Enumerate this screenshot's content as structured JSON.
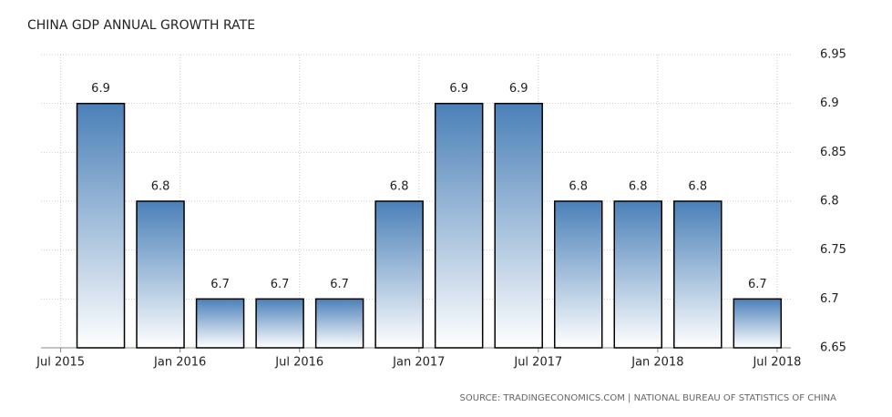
{
  "chart_data": {
    "type": "bar",
    "title": "CHINA GDP ANNUAL GROWTH RATE",
    "source": "SOURCE: TRADINGECONOMICS.COM | NATIONAL BUREAU OF STATISTICS OF CHINA",
    "categories": [
      null,
      null,
      null,
      null,
      null,
      null,
      null,
      null,
      null,
      null,
      null,
      null
    ],
    "values": [
      6.9,
      6.8,
      6.7,
      6.7,
      6.7,
      6.8,
      6.9,
      6.9,
      6.8,
      6.8,
      6.8,
      6.7
    ],
    "color": "#4a80b8",
    "xlim": [
      -1,
      11.56
    ],
    "xticks": [
      {
        "value": -0.67,
        "label": "Jul 2015"
      },
      {
        "value": 1.33,
        "label": "Jan 2016"
      },
      {
        "value": 3.33,
        "label": "Jul 2016"
      },
      {
        "value": 5.33,
        "label": "Jan 2017"
      },
      {
        "value": 7.33,
        "label": "Jul 2017"
      },
      {
        "value": 9.33,
        "label": "Jan 2018"
      },
      {
        "value": 11.33,
        "label": "Jul 2018"
      }
    ],
    "ylim": [
      6.65,
      6.95
    ],
    "yticks": [
      6.65,
      6.7,
      6.75,
      6.8,
      6.85,
      6.9,
      6.95
    ],
    "grid": true
  }
}
